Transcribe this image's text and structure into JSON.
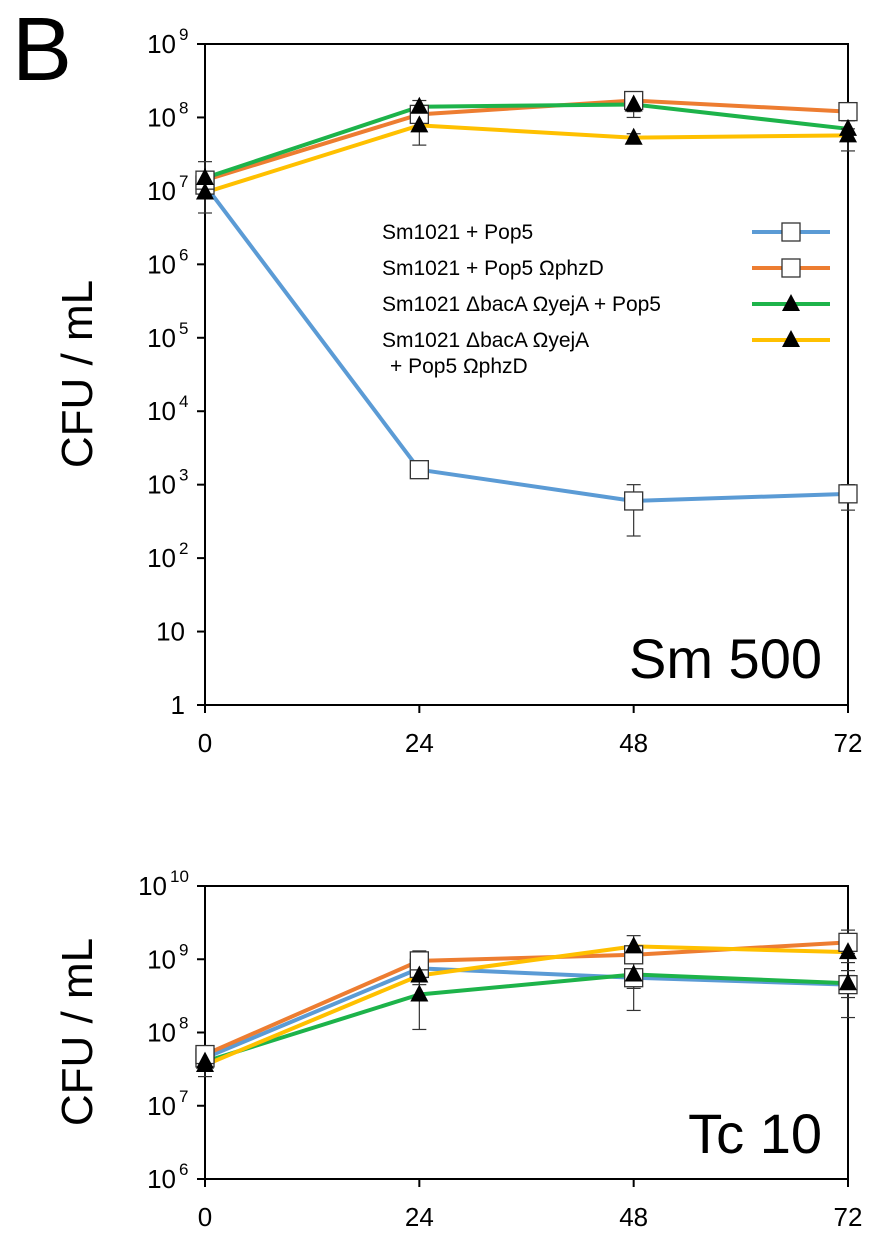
{
  "panel_label": "B",
  "colors": {
    "Sm1021 + Pop5": "#5b9bd5",
    "Sm1021 + Pop5 ΩphzD": "#ed7d31",
    "Sm1021 ΔbacA ΩyejA + Pop5": "#1db34a",
    "Sm1021 ΔbacA ΩyejA + Pop5 ΩphzD": "#ffc000"
  },
  "legend": {
    "items": [
      {
        "line1": "Sm1021 + Pop5",
        "series": "Sm1021 + Pop5",
        "marker": "square"
      },
      {
        "line1": "Sm1021 + Pop5 ΩphzD",
        "series": "Sm1021 + Pop5 ΩphzD",
        "marker": "square"
      },
      {
        "line1": "Sm1021 ΔbacA ΩyejA + Pop5",
        "series": "Sm1021 ΔbacA ΩyejA + Pop5",
        "marker": "triangle"
      },
      {
        "line1": "Sm1021 ΔbacA ΩyejA",
        "line2": "+ Pop5 ΩphzD",
        "series": "Sm1021 ΔbacA ΩyejA + Pop5 ΩphzD",
        "marker": "triangle"
      }
    ]
  },
  "chart_data": [
    {
      "type": "line",
      "condition_label": "Sm 500",
      "ylabel": "CFU / mL",
      "xlabel": "",
      "yscale": "log",
      "ylim": [
        1,
        1000000000
      ],
      "x": [
        0,
        24,
        48,
        72
      ],
      "x_ticks": [
        "0",
        "24",
        "48",
        "72"
      ],
      "y_ticks": [
        {
          "value": 1000000000,
          "base": "10",
          "exp": "9"
        },
        {
          "value": 100000000,
          "base": "10",
          "exp": "8"
        },
        {
          "value": 10000000,
          "base": "10",
          "exp": "7"
        },
        {
          "value": 1000000,
          "base": "10",
          "exp": "6"
        },
        {
          "value": 100000,
          "base": "10",
          "exp": "5"
        },
        {
          "value": 10000,
          "base": "10",
          "exp": "4"
        },
        {
          "value": 1000,
          "base": "10",
          "exp": "3"
        },
        {
          "value": 100,
          "base": "10",
          "exp": "2"
        },
        {
          "value": 10,
          "base": "10",
          "exp": ""
        },
        {
          "value": 1,
          "base": "1",
          "exp": ""
        }
      ],
      "series": [
        {
          "name": "Sm1021 + Pop5",
          "marker": "square",
          "values": [
            12000000,
            1600,
            600,
            750
          ],
          "err_low": [
            9000000,
            1500,
            200,
            450
          ],
          "err_high": [
            16000000,
            1750,
            1000,
            1000
          ]
        },
        {
          "name": "Sm1021 + Pop5 ΩphzD",
          "marker": "square",
          "values": [
            14000000,
            110000000,
            170000000,
            120000000
          ],
          "err_low": [
            11000000,
            90000000,
            120000000,
            100000000
          ],
          "err_high": [
            18000000,
            130000000,
            220000000,
            140000000
          ]
        },
        {
          "name": "Sm1021 ΔbacA ΩyejA + Pop5",
          "marker": "triangle",
          "values": [
            15000000,
            140000000,
            150000000,
            70000000
          ],
          "err_low": [
            10000000,
            110000000,
            100000000,
            50000000
          ],
          "err_high": [
            25000000,
            170000000,
            200000000,
            90000000
          ]
        },
        {
          "name": "Sm1021 ΔbacA ΩyejA + Pop5 ΩphzD",
          "marker": "triangle",
          "values": [
            9500000,
            78000000,
            53000000,
            57000000
          ],
          "err_low": [
            5000000,
            42000000,
            45000000,
            35000000
          ],
          "err_high": [
            13000000,
            110000000,
            60000000,
            70000000
          ]
        }
      ]
    },
    {
      "type": "line",
      "condition_label": "Tc 10",
      "ylabel": "CFU / mL",
      "xlabel": "",
      "yscale": "log",
      "ylim": [
        1000000,
        10000000000
      ],
      "x": [
        0,
        24,
        48,
        72
      ],
      "x_ticks": [
        "0",
        "24",
        "48",
        "72"
      ],
      "y_ticks": [
        {
          "value": 10000000000,
          "base": "10",
          "exp": "10"
        },
        {
          "value": 1000000000,
          "base": "10",
          "exp": "9"
        },
        {
          "value": 100000000,
          "base": "10",
          "exp": "8"
        },
        {
          "value": 10000000,
          "base": "10",
          "exp": "7"
        },
        {
          "value": 1000000,
          "base": "10",
          "exp": "6"
        }
      ],
      "series": [
        {
          "name": "Sm1021 + Pop5",
          "marker": "square",
          "values": [
            45000000,
            750000000,
            560000000,
            450000000
          ],
          "err_low": [
            35000000,
            650000000,
            400000000,
            300000000
          ],
          "err_high": [
            55000000,
            850000000,
            700000000,
            600000000
          ]
        },
        {
          "name": "Sm1021 + Pop5 ΩphzD",
          "marker": "square",
          "values": [
            50000000,
            950000000,
            1150000000,
            1700000000
          ],
          "err_low": [
            40000000,
            800000000,
            950000000,
            1200000000
          ],
          "err_high": [
            60000000,
            1300000000,
            1400000000,
            2500000000
          ]
        },
        {
          "name": "Sm1021 ΔbacA ΩyejA + Pop5",
          "marker": "triangle",
          "values": [
            40000000,
            330000000,
            620000000,
            470000000
          ],
          "err_low": [
            30000000,
            110000000,
            200000000,
            160000000
          ],
          "err_high": [
            50000000,
            550000000,
            900000000,
            700000000
          ]
        },
        {
          "name": "Sm1021 ΔbacA ΩyejA + Pop5 ΩphzD",
          "marker": "triangle",
          "values": [
            36000000,
            600000000,
            1500000000,
            1250000000
          ],
          "err_low": [
            25000000,
            450000000,
            1150000000,
            900000000
          ],
          "err_high": [
            45000000,
            750000000,
            2100000000,
            1600000000
          ]
        }
      ]
    }
  ]
}
